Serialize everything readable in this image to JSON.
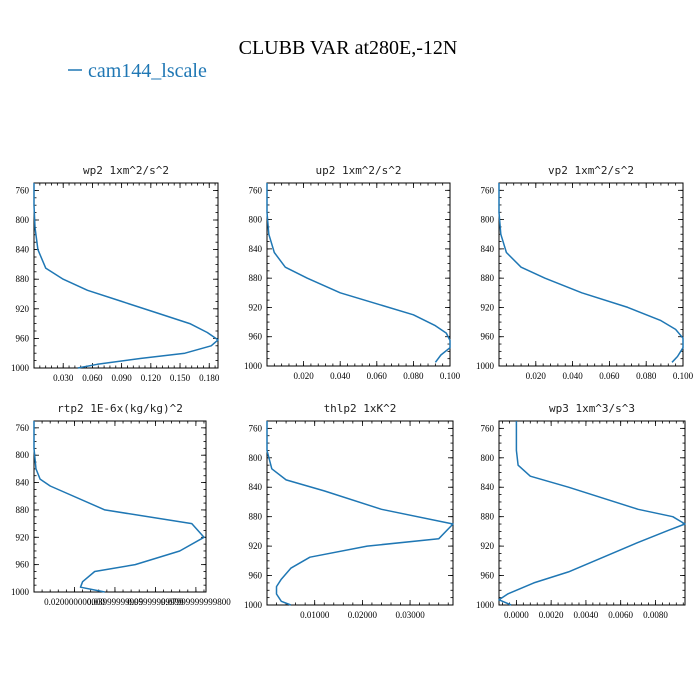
{
  "figure": {
    "title": "CLUBB VAR at280E,-12N",
    "legend": [
      {
        "label": "cam144_lscale",
        "color": "#1f77b4"
      }
    ],
    "line_color": "#1f77b4"
  },
  "chart_data": [
    {
      "type": "line",
      "title": "wp2  1xm^2/s^2",
      "xlabel": "",
      "ylabel": "",
      "xlim": [
        0.0,
        0.189
      ],
      "ylim": [
        1000,
        750
      ],
      "y_inverted": true,
      "xticks": [
        0.03,
        0.06,
        0.09,
        0.12,
        0.15,
        0.18
      ],
      "xtick_labels": [
        "0.030",
        "0.060",
        "0.090",
        "0.120",
        "0.150",
        "0.180"
      ],
      "yticks": [
        760,
        800,
        840,
        880,
        920,
        960,
        1000
      ],
      "series": [
        {
          "name": "cam144_lscale",
          "x": [
            0.0,
            0.0,
            0.001,
            0.004,
            0.012,
            0.03,
            0.055,
            0.09,
            0.125,
            0.16,
            0.178,
            0.189,
            0.182,
            0.155,
            0.11,
            0.065,
            0.045
          ],
          "y": [
            750,
            780,
            810,
            840,
            865,
            880,
            895,
            910,
            925,
            940,
            952,
            962,
            970,
            980,
            987,
            995,
            1000
          ]
        }
      ]
    },
    {
      "type": "line",
      "title": "up2  1xm^2/s^2",
      "xlabel": "",
      "ylabel": "",
      "xlim": [
        0.0,
        0.1
      ],
      "ylim": [
        1000,
        750
      ],
      "y_inverted": true,
      "xticks": [
        0.02,
        0.04,
        0.06,
        0.08,
        0.1
      ],
      "xtick_labels": [
        "0.020",
        "0.040",
        "0.060",
        "0.080",
        "0.100"
      ],
      "yticks": [
        760,
        800,
        840,
        880,
        920,
        960,
        1000
      ],
      "series": [
        {
          "name": "cam144_lscale",
          "x": [
            0.0,
            0.0,
            0.001,
            0.004,
            0.01,
            0.022,
            0.04,
            0.06,
            0.08,
            0.092,
            0.098,
            0.1,
            0.1,
            0.095,
            0.092
          ],
          "y": [
            750,
            790,
            820,
            845,
            865,
            880,
            900,
            915,
            930,
            945,
            955,
            965,
            975,
            985,
            995
          ]
        }
      ]
    },
    {
      "type": "line",
      "title": "vp2  1xm^2/s^2",
      "xlabel": "",
      "ylabel": "",
      "xlim": [
        0.0,
        0.1
      ],
      "ylim": [
        1000,
        750
      ],
      "y_inverted": true,
      "xticks": [
        0.02,
        0.04,
        0.06,
        0.08,
        0.1
      ],
      "xtick_labels": [
        "0.020",
        "0.040",
        "0.060",
        "0.080",
        "0.100"
      ],
      "yticks": [
        760,
        800,
        840,
        880,
        920,
        960,
        1000
      ],
      "series": [
        {
          "name": "cam144_lscale",
          "x": [
            0.0,
            0.0,
            0.001,
            0.004,
            0.012,
            0.025,
            0.045,
            0.07,
            0.088,
            0.096,
            0.1,
            0.1,
            0.097,
            0.094
          ],
          "y": [
            750,
            790,
            820,
            845,
            865,
            880,
            900,
            920,
            938,
            950,
            962,
            975,
            987,
            995
          ]
        }
      ]
    },
    {
      "type": "line",
      "title": "rtp2  1E-6x(kg/kg)^2",
      "xlabel": "",
      "ylabel": "",
      "xlim": [
        0.0,
        0.0085
      ],
      "ylim": [
        1000,
        750
      ],
      "y_inverted": true,
      "xticks": [
        0.002,
        0.004,
        0.006,
        0.008
      ],
      "xtick_labels": [
        "0.020000000000",
        "0.03999999999",
        "0.05999999999",
        "0.07999999999800"
      ],
      "yticks": [
        760,
        800,
        840,
        880,
        920,
        960,
        1000
      ],
      "series": [
        {
          "name": "cam144_lscale",
          "x": [
            0.0,
            0.0,
            0.0001,
            0.0003,
            0.0008,
            0.0035,
            0.0078,
            0.0084,
            0.0072,
            0.005,
            0.003,
            0.0024,
            0.0023,
            0.0035
          ],
          "y": [
            750,
            790,
            820,
            835,
            845,
            880,
            900,
            920,
            940,
            960,
            970,
            985,
            993,
            1000
          ]
        }
      ]
    },
    {
      "type": "line",
      "title": "thlp2  1xK^2",
      "xlabel": "",
      "ylabel": "",
      "xlim": [
        0.0,
        0.039
      ],
      "ylim": [
        1000,
        750
      ],
      "y_inverted": true,
      "xticks": [
        0.01,
        0.02,
        0.03
      ],
      "xtick_labels": [
        "0.01000",
        "0.02000",
        "0.03000"
      ],
      "yticks": [
        760,
        800,
        840,
        880,
        920,
        960,
        1000
      ],
      "series": [
        {
          "name": "cam144_lscale",
          "x": [
            0.0,
            0.0,
            0.001,
            0.004,
            0.012,
            0.024,
            0.039,
            0.036,
            0.021,
            0.009,
            0.005,
            0.003,
            0.002,
            0.002,
            0.003,
            0.005
          ],
          "y": [
            750,
            790,
            815,
            830,
            845,
            870,
            890,
            910,
            920,
            935,
            950,
            965,
            975,
            985,
            995,
            1000
          ]
        }
      ]
    },
    {
      "type": "line",
      "title": "wp3  1xm^3/s^3",
      "xlabel": "",
      "ylabel": "",
      "xlim": [
        -0.001,
        0.0097
      ],
      "ylim": [
        1000,
        750
      ],
      "y_inverted": true,
      "xticks": [
        0.0,
        0.002,
        0.004,
        0.006,
        0.008
      ],
      "xtick_labels": [
        "0.0000",
        "0.0020",
        "0.0040",
        "0.0060",
        "0.0080"
      ],
      "yticks": [
        760,
        800,
        840,
        880,
        920,
        960,
        1000
      ],
      "series": [
        {
          "name": "cam144_lscale",
          "x": [
            0.0,
            0.0,
            0.0001,
            0.0008,
            0.003,
            0.007,
            0.009,
            0.0097,
            0.0088,
            0.007,
            0.005,
            0.003,
            0.001,
            -0.0005,
            -0.001,
            -0.0003
          ],
          "y": [
            750,
            790,
            810,
            825,
            840,
            870,
            880,
            890,
            898,
            915,
            935,
            955,
            970,
            985,
            993,
            1000
          ]
        }
      ]
    }
  ]
}
